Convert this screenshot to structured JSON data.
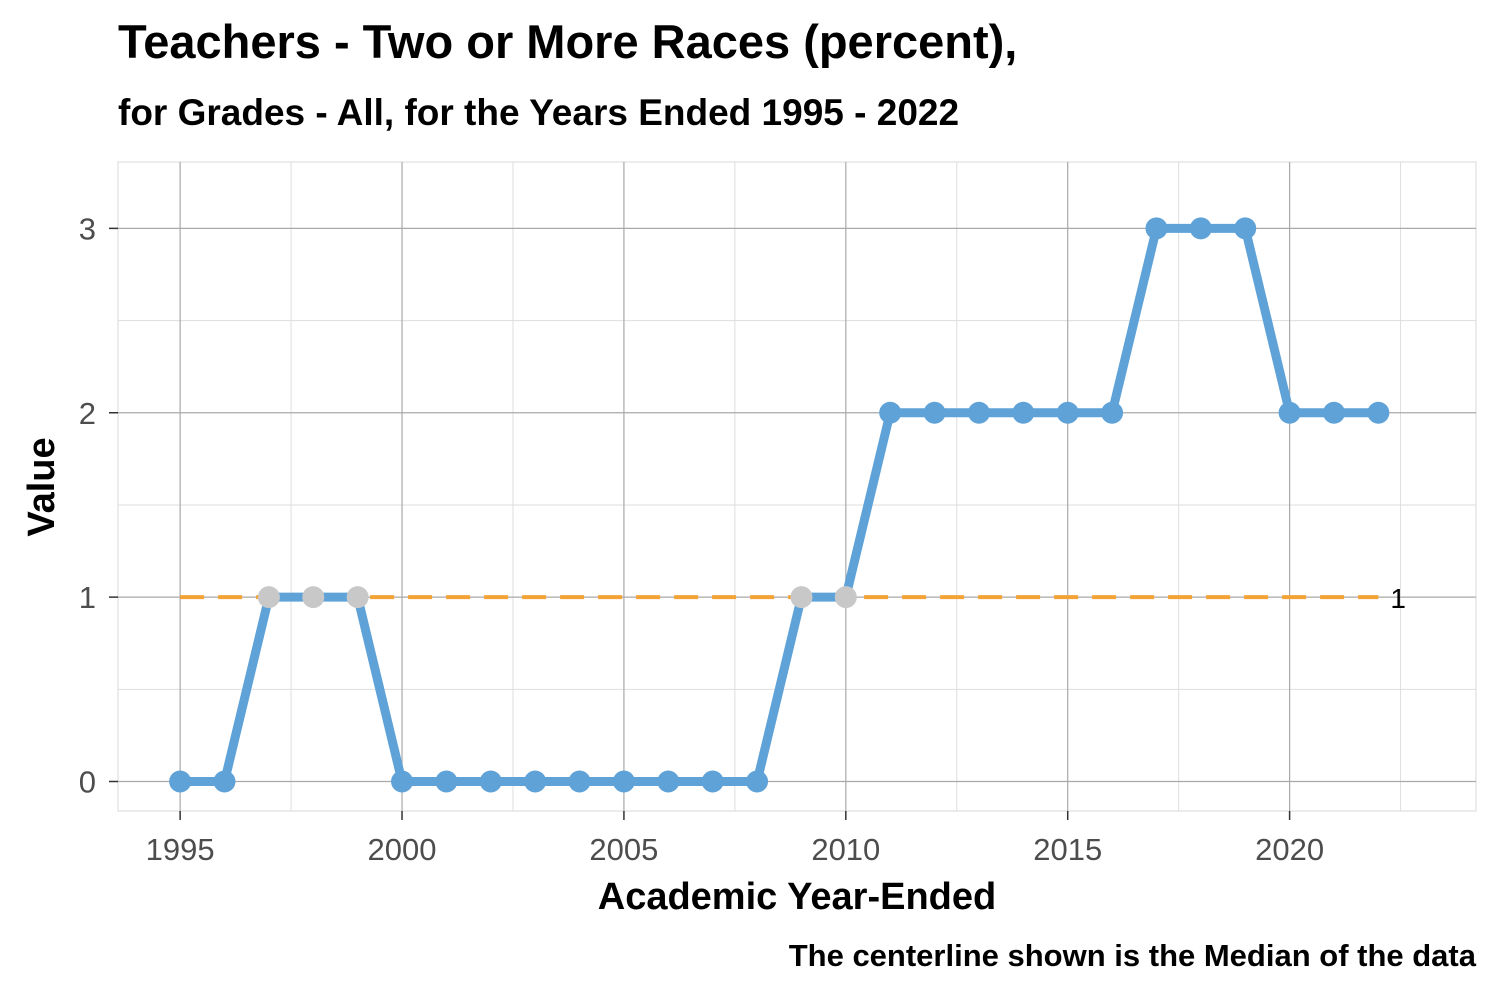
{
  "title": "Teachers - Two or More Races (percent),",
  "subtitle": "for Grades - All, for the Years Ended 1995  -  2022",
  "caption": "The centerline shown is the Median of the data",
  "chart_data": {
    "type": "line",
    "xlabel": "Academic Year-Ended",
    "ylabel": "Value",
    "xlim": [
      1993.6,
      2024.2
    ],
    "ylim": [
      -0.16,
      3.36
    ],
    "x_ticks": [
      1995,
      2000,
      2005,
      2010,
      2015,
      2020
    ],
    "y_ticks": [
      0,
      1,
      2,
      3
    ],
    "grid": true,
    "legend": "none",
    "series": [
      {
        "x": [
          1995,
          1996,
          1997,
          1998,
          1999,
          2000,
          2001,
          2002,
          2003,
          2004,
          2005,
          2006,
          2007,
          2008,
          2009,
          2010,
          2011,
          2012,
          2013,
          2014,
          2015,
          2016,
          2017,
          2018,
          2019,
          2020,
          2021,
          2022
        ],
        "values": [
          0,
          0,
          1,
          1,
          1,
          0,
          0,
          0,
          0,
          0,
          0,
          0,
          0,
          0,
          1,
          1,
          2,
          2,
          2,
          2,
          2,
          2,
          3,
          3,
          3,
          2,
          2,
          2
        ],
        "color": "#5fa2d8",
        "highlight_color": "#c8c8c8"
      }
    ],
    "centerline": {
      "statistic": "Median",
      "value": 1,
      "label": "1",
      "color": "#f4a234"
    }
  }
}
